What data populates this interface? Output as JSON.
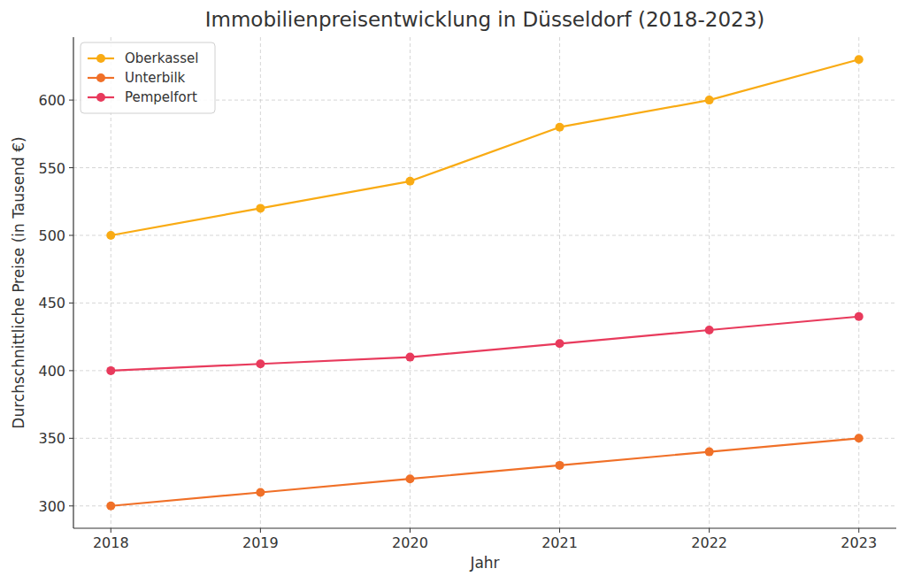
{
  "chart_data": {
    "type": "line",
    "title": "Immobilienpreisentwicklung in Düsseldorf (2018-2023)",
    "x_label": "Jahr",
    "y_label": "Durchschnittliche Preise (in Tausend €)",
    "x": [
      2018,
      2019,
      2020,
      2021,
      2022,
      2023
    ],
    "series": [
      {
        "name": "Oberkassel",
        "color": "#f9ab14",
        "marker": "circle",
        "values": [
          500,
          520,
          540,
          580,
          600,
          630
        ]
      },
      {
        "name": "Unterbilk",
        "color": "#f07028",
        "marker": "circle",
        "values": [
          300,
          310,
          320,
          330,
          340,
          350
        ]
      },
      {
        "name": "Pempelfort",
        "color": "#e83a5c",
        "marker": "circle",
        "values": [
          400,
          405,
          410,
          420,
          430,
          440
        ]
      }
    ],
    "xlim": [
      2017.75,
      2023.25
    ],
    "xticks": [
      2018,
      2019,
      2020,
      2021,
      2022,
      2023
    ],
    "ylim": [
      283.5,
      646.5
    ],
    "yticks": [
      300,
      350,
      400,
      450,
      500,
      550,
      600
    ],
    "grid": true,
    "legend": "upper left"
  }
}
